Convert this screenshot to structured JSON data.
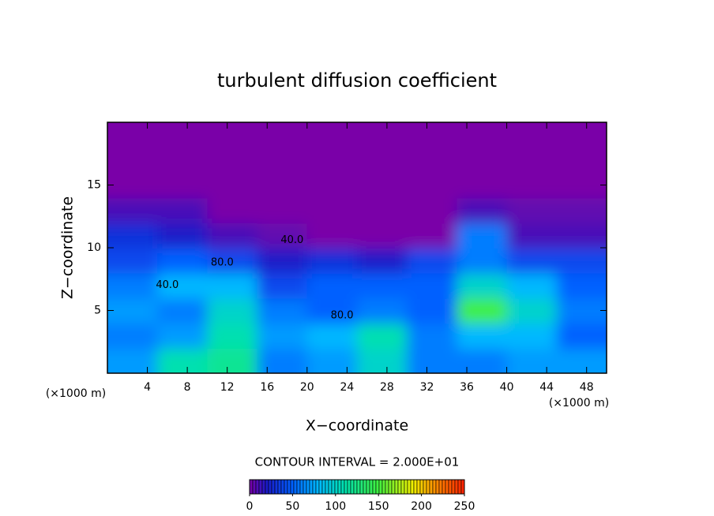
{
  "chart_data": {
    "type": "contour",
    "title": "turbulent diffusion coefficient",
    "x_label": "X−coordinate",
    "y_label": "Z−coordinate",
    "x_unit_left": "(×1000 m)",
    "x_unit_right": "(×1000 m)",
    "contour_interval": "CONTOUR INTERVAL = 2.000E+01",
    "xlim": [
      0,
      50
    ],
    "ylim": [
      0,
      20
    ],
    "xticks": [
      4,
      8,
      12,
      16,
      20,
      24,
      28,
      32,
      36,
      40,
      44,
      48
    ],
    "yticks": [
      5,
      10,
      15
    ],
    "x": [
      2.5,
      7.5,
      12.5,
      17.5,
      22.5,
      27.5,
      32.5,
      37.5,
      42.5,
      47.5
    ],
    "z": [
      1,
      3,
      5,
      7,
      9,
      11,
      13,
      15,
      17,
      19
    ],
    "values": [
      [
        70,
        110,
        120,
        60,
        70,
        100,
        60,
        60,
        70,
        70
      ],
      [
        60,
        70,
        110,
        70,
        80,
        110,
        60,
        80,
        80,
        50
      ],
      [
        70,
        60,
        100,
        60,
        50,
        60,
        50,
        150,
        100,
        60
      ],
      [
        60,
        80,
        80,
        40,
        50,
        50,
        50,
        100,
        80,
        50
      ],
      [
        40,
        50,
        40,
        20,
        30,
        20,
        40,
        60,
        40,
        40
      ],
      [
        30,
        20,
        10,
        5,
        0,
        0,
        0,
        60,
        10,
        10
      ],
      [
        10,
        10,
        0,
        0,
        0,
        0,
        0,
        10,
        5,
        5
      ],
      [
        0,
        0,
        0,
        0,
        0,
        0,
        0,
        0,
        0,
        0
      ],
      [
        0,
        0,
        0,
        0,
        0,
        0,
        0,
        0,
        0,
        0
      ],
      [
        0,
        0,
        0,
        0,
        0,
        0,
        0,
        0,
        0,
        0
      ]
    ],
    "annotations": [
      {
        "text": "40.0",
        "x": 6,
        "y": 7
      },
      {
        "text": "80.0",
        "x": 11.5,
        "y": 8.8
      },
      {
        "text": "40.0",
        "x": 18.5,
        "y": 10.6
      },
      {
        "text": "80.0",
        "x": 23.5,
        "y": 4.6
      }
    ],
    "clim": [
      0,
      250
    ],
    "colorbar_ticks": [
      0,
      50,
      100,
      150,
      200,
      250
    ],
    "colormap": [
      [
        0,
        "#7a00a8"
      ],
      [
        20,
        "#1a1ac8"
      ],
      [
        50,
        "#0060ff"
      ],
      [
        80,
        "#00b8ff"
      ],
      [
        110,
        "#00e0b0"
      ],
      [
        150,
        "#40f040"
      ],
      [
        190,
        "#f0f000"
      ],
      [
        220,
        "#ff8000"
      ],
      [
        250,
        "#ff2000"
      ]
    ]
  }
}
